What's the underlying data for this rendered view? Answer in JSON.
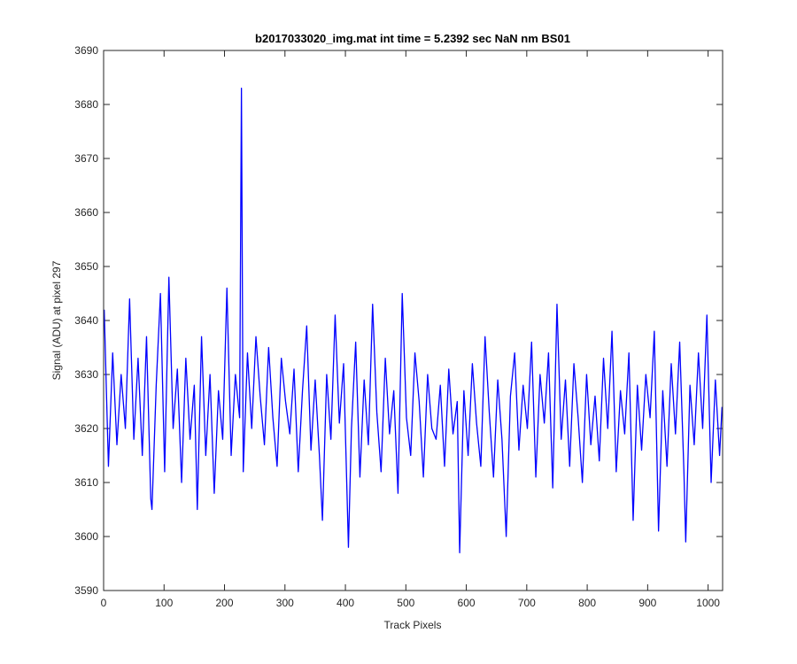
{
  "chart_data": {
    "type": "line",
    "title": "b2017033020_img.mat int time = 5.2392 sec  NaN nm BS01",
    "x_label": "Track Pixels",
    "y_label": "Signal (ADU) at pixel 297",
    "xlim": [
      0,
      1024
    ],
    "ylim": [
      3590,
      3690
    ],
    "xticks": [
      0,
      100,
      200,
      300,
      400,
      500,
      600,
      700,
      800,
      900,
      1000
    ],
    "yticks": [
      3590,
      3600,
      3610,
      3620,
      3630,
      3640,
      3650,
      3660,
      3670,
      3680,
      3690
    ],
    "color": "#0000ff",
    "x": [
      1,
      8,
      15,
      22,
      29,
      36,
      43,
      50,
      57,
      64,
      71,
      78,
      80,
      87,
      94,
      101,
      108,
      115,
      122,
      129,
      136,
      143,
      150,
      155,
      162,
      169,
      176,
      183,
      190,
      197,
      204,
      211,
      218,
      225,
      228,
      231,
      238,
      245,
      252,
      259,
      266,
      273,
      280,
      287,
      294,
      301,
      308,
      315,
      322,
      329,
      336,
      343,
      350,
      357,
      362,
      369,
      376,
      383,
      390,
      397,
      405,
      410,
      417,
      424,
      431,
      438,
      445,
      452,
      459,
      466,
      473,
      480,
      487,
      494,
      501,
      508,
      515,
      522,
      529,
      536,
      543,
      550,
      557,
      564,
      571,
      578,
      585,
      589,
      596,
      603,
      610,
      617,
      624,
      631,
      638,
      645,
      652,
      659,
      666,
      673,
      680,
      687,
      694,
      701,
      708,
      715,
      722,
      729,
      736,
      743,
      750,
      757,
      764,
      771,
      778,
      785,
      792,
      799,
      806,
      813,
      820,
      827,
      834,
      841,
      848,
      855,
      862,
      869,
      876,
      883,
      890,
      897,
      904,
      911,
      918,
      925,
      932,
      939,
      946,
      953,
      960,
      963,
      970,
      977,
      984,
      991,
      998,
      1005,
      1012,
      1019,
      1023
    ],
    "values": [
      3642,
      3613,
      3634,
      3617,
      3630,
      3620,
      3644,
      3618,
      3633,
      3615,
      3637,
      3607,
      3605,
      3628,
      3645,
      3612,
      3648,
      3620,
      3631,
      3610,
      3633,
      3618,
      3628,
      3605,
      3637,
      3615,
      3630,
      3608,
      3627,
      3618,
      3646,
      3615,
      3630,
      3622,
      3683,
      3612,
      3634,
      3620,
      3637,
      3626,
      3617,
      3635,
      3622,
      3613,
      3633,
      3625,
      3619,
      3631,
      3612,
      3627,
      3639,
      3616,
      3629,
      3615,
      3603,
      3630,
      3618,
      3641,
      3621,
      3632,
      3598,
      3620,
      3636,
      3611,
      3629,
      3617,
      3643,
      3623,
      3612,
      3633,
      3619,
      3627,
      3608,
      3645,
      3622,
      3615,
      3634,
      3625,
      3611,
      3630,
      3620,
      3618,
      3628,
      3613,
      3631,
      3619,
      3625,
      3597,
      3627,
      3615,
      3632,
      3621,
      3613,
      3637,
      3623,
      3611,
      3629,
      3618,
      3600,
      3626,
      3634,
      3616,
      3628,
      3620,
      3636,
      3611,
      3630,
      3621,
      3634,
      3609,
      3643,
      3618,
      3629,
      3613,
      3632,
      3622,
      3610,
      3630,
      3617,
      3626,
      3614,
      3633,
      3620,
      3638,
      3612,
      3627,
      3619,
      3634,
      3603,
      3628,
      3616,
      3630,
      3622,
      3638,
      3601,
      3627,
      3613,
      3632,
      3619,
      3636,
      3612,
      3599,
      3628,
      3617,
      3634,
      3620,
      3641,
      3610,
      3629,
      3615,
      3624
    ]
  }
}
